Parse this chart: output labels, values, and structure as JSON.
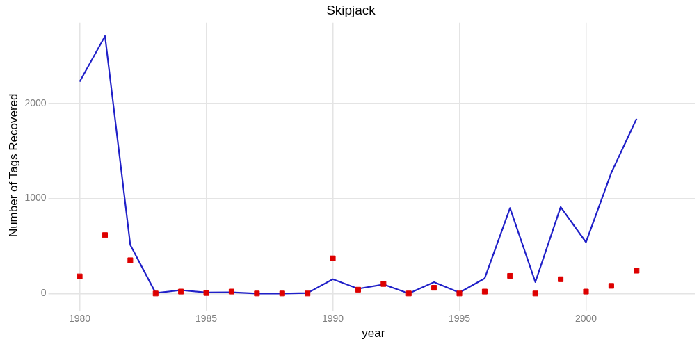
{
  "chart_data": {
    "type": "line",
    "title": "Skipjack",
    "xlabel": "year",
    "ylabel": "Number of Tags Recovered",
    "x": [
      1980,
      1981,
      1982,
      1983,
      1984,
      1985,
      1986,
      1987,
      1988,
      1989,
      1990,
      1991,
      1992,
      1993,
      1994,
      1995,
      1996,
      1997,
      1998,
      1999,
      2000,
      2001,
      2002
    ],
    "series": [
      {
        "color": "#2020c8",
        "marker": "none",
        "line_style": "solid",
        "values": [
          2230,
          2710,
          510,
          5,
          35,
          10,
          12,
          0,
          0,
          5,
          150,
          50,
          95,
          0,
          120,
          10,
          160,
          900,
          120,
          910,
          540,
          1270,
          1840
        ]
      },
      {
        "type": "scatter",
        "color": "#dd0000",
        "marker": "square",
        "values": [
          180,
          615,
          350,
          0,
          20,
          5,
          20,
          0,
          0,
          0,
          370,
          40,
          100,
          0,
          60,
          0,
          20,
          185,
          0,
          150,
          20,
          80,
          240
        ]
      }
    ],
    "xlim": [
      1978.9,
      2004.3
    ],
    "xticks": [
      1980,
      1985,
      1990,
      1995,
      2000
    ],
    "ylim": [
      -150,
      2850
    ],
    "yticks": [
      0,
      1000,
      2000
    ],
    "grid": true,
    "legend": false
  }
}
